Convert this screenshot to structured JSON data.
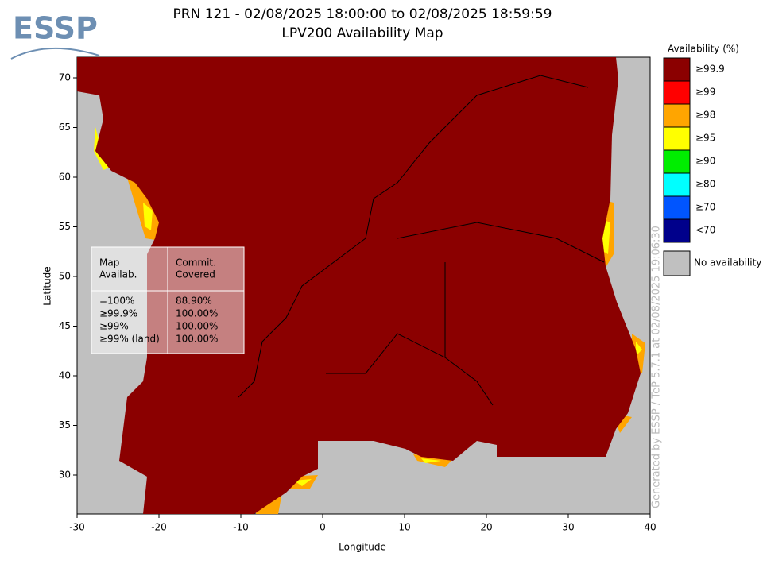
{
  "logo": "ESSP",
  "title": [
    "PRN 121 - 02/08/2025 18:00:00 to 02/08/2025 18:59:59",
    "LPV200 Availability Map"
  ],
  "map": {
    "x_label": "Longitude",
    "y_label": "Latitude",
    "xlim": [
      -30,
      40
    ],
    "ylim": [
      26.08,
      72.08
    ],
    "xticks": [
      -30,
      -20,
      -10,
      0,
      10,
      20,
      30,
      40
    ],
    "yticks": [
      30,
      35,
      40,
      45,
      50,
      55,
      60,
      65,
      70
    ]
  },
  "legend": {
    "title": "Availability (%)",
    "items": [
      {
        "label": "≥99.9",
        "color": "#8b0000"
      },
      {
        "label": "≥99",
        "color": "#ff0000"
      },
      {
        "label": "≥98",
        "color": "#ffa500"
      },
      {
        "label": "≥95",
        "color": "#ffff00"
      },
      {
        "label": "≥90",
        "color": "#00ee00"
      },
      {
        "label": "≥80",
        "color": "#00ffff"
      },
      {
        "label": "≥70",
        "color": "#0055ff"
      },
      {
        "label": "<70",
        "color": "#00008b"
      }
    ],
    "no_data": {
      "label": "No availability",
      "color": "#c0c0c0"
    }
  },
  "table": {
    "header": [
      [
        "Map",
        "Availab."
      ],
      [
        "Commit.",
        "Covered"
      ]
    ],
    "rows": [
      [
        "=100%",
        "88.90%"
      ],
      [
        "≥99.9%",
        "100.00%"
      ],
      [
        "≥99%",
        "100.00%"
      ],
      [
        "≥99% (land)",
        "100.00%"
      ]
    ]
  },
  "footer": "Generated by ESSP / TeP 5.7.1 at 02/08/2025 19:06:30"
}
